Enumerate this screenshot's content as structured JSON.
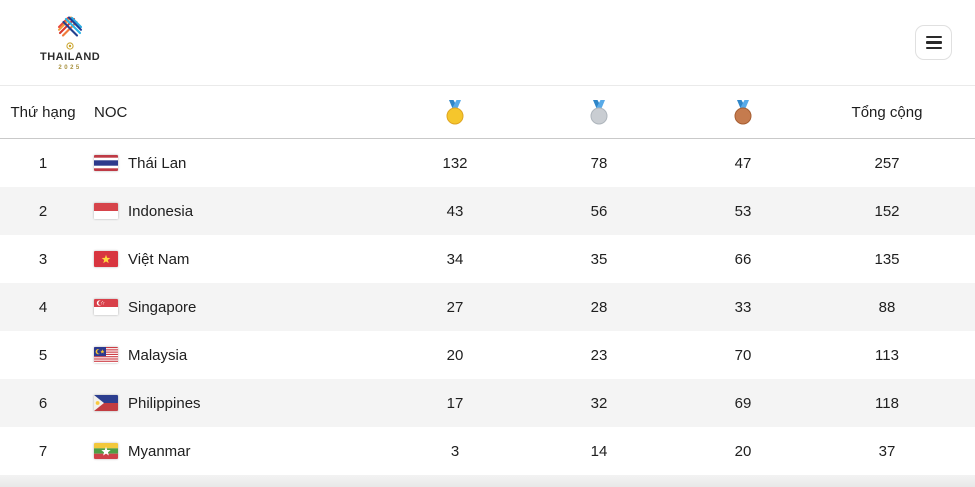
{
  "navbar": {
    "logo": {
      "country": "THAILAND",
      "year": "2025"
    },
    "menu_icon": "hamburger-menu-icon"
  },
  "table": {
    "columns": {
      "rank": "Thứ hạng",
      "noc": "NOC",
      "gold_icon": "gold-medal-icon",
      "silver_icon": "silver-medal-icon",
      "bronze_icon": "bronze-medal-icon",
      "total": "Tổng cộng"
    },
    "rows": [
      {
        "rank": "1",
        "flag": "TH",
        "noc": "Thái Lan",
        "gold": "132",
        "silver": "78",
        "bronze": "47",
        "total": "257"
      },
      {
        "rank": "2",
        "flag": "ID",
        "noc": "Indonesia",
        "gold": "43",
        "silver": "56",
        "bronze": "53",
        "total": "152"
      },
      {
        "rank": "3",
        "flag": "VN",
        "noc": "Việt Nam",
        "gold": "34",
        "silver": "35",
        "bronze": "66",
        "total": "135"
      },
      {
        "rank": "4",
        "flag": "SG",
        "noc": "Singapore",
        "gold": "27",
        "silver": "28",
        "bronze": "33",
        "total": "88"
      },
      {
        "rank": "5",
        "flag": "MY",
        "noc": "Malaysia",
        "gold": "20",
        "silver": "23",
        "bronze": "70",
        "total": "113"
      },
      {
        "rank": "6",
        "flag": "PH",
        "noc": "Philippines",
        "gold": "17",
        "silver": "32",
        "bronze": "69",
        "total": "118"
      },
      {
        "rank": "7",
        "flag": "MM",
        "noc": "Myanmar",
        "gold": "3",
        "silver": "14",
        "bronze": "20",
        "total": "37"
      }
    ]
  },
  "colors": {
    "gold": "#F5C62C",
    "gold_edge": "#DFA521",
    "silver": "#C9CDD2",
    "silver_edge": "#AEB5BC",
    "bronze": "#C57B4E",
    "bronze_edge": "#A65E32",
    "ribbon_dark": "#2F86C8",
    "ribbon_light": "#58AAE8",
    "row_alt": "#F4F4F4"
  }
}
